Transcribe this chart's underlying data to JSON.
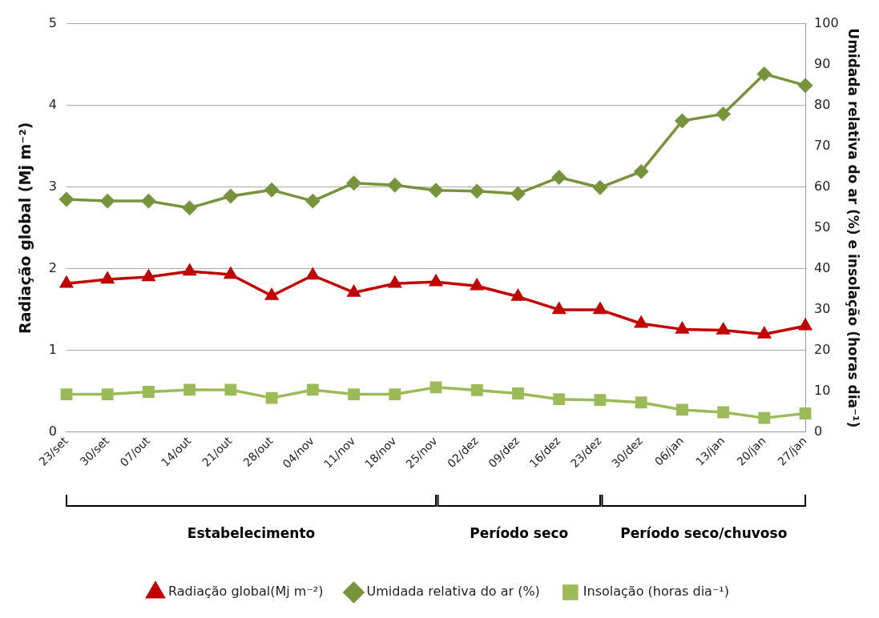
{
  "chart_data": {
    "type": "line",
    "categories": [
      "23/set",
      "30/set",
      "07/out",
      "14/out",
      "21/out",
      "28/out",
      "04/nov",
      "11/nov",
      "18/nov",
      "25/nov",
      "02/dez",
      "09/dez",
      "16/dez",
      "23/dez",
      "30/dez",
      "06/jan",
      "13/jan",
      "20/jan",
      "27/jan"
    ],
    "series": [
      {
        "name": "Radiação global(Mj m⁻²)",
        "color": "#c00000",
        "marker": "triangle",
        "values": [
          1.82,
          1.87,
          1.9,
          1.97,
          1.93,
          1.67,
          1.92,
          1.71,
          1.82,
          1.84,
          1.79,
          1.66,
          1.5,
          1.5,
          1.33,
          1.26,
          1.25,
          1.2,
          1.3
        ]
      },
      {
        "name": "Umidada relativa do ar (%)",
        "color": "#77933c",
        "marker": "diamond",
        "axis": "y2",
        "values": [
          57,
          56.6,
          56.6,
          54.9,
          57.8,
          59.3,
          56.6,
          61,
          60.5,
          59.2,
          59,
          58.4,
          62.4,
          59.9,
          63.8,
          76.2,
          77.9,
          87.7,
          84.9
        ]
      },
      {
        "name": "Insolação (horas dia⁻¹)",
        "color": "#9bbb59",
        "marker": "square",
        "axis": "y2",
        "values": [
          9.3,
          9.3,
          9.9,
          10.4,
          10.4,
          8.4,
          10.4,
          9.3,
          9.3,
          11,
          10.3,
          9.5,
          8.1,
          7.9,
          7.3,
          5.5,
          4.9,
          3.5,
          4.6
        ]
      }
    ],
    "ylabel": "Radiação global (Mj m⁻²)",
    "y2label": "Umidada relativa do ar (%) e insolação (horas dia⁻¹)",
    "ylim": [
      0,
      5
    ],
    "yticks": [
      0,
      1,
      2,
      3,
      4,
      5
    ],
    "y2lim": [
      0,
      100
    ],
    "y2ticks": [
      0,
      10,
      20,
      30,
      40,
      50,
      60,
      70,
      80,
      90,
      100
    ],
    "annotations": [
      "Estabelecimento",
      "Período seco",
      "Período seco/chuvoso"
    ],
    "grid": "y",
    "legend": "bottom",
    "line_style": "solid"
  }
}
